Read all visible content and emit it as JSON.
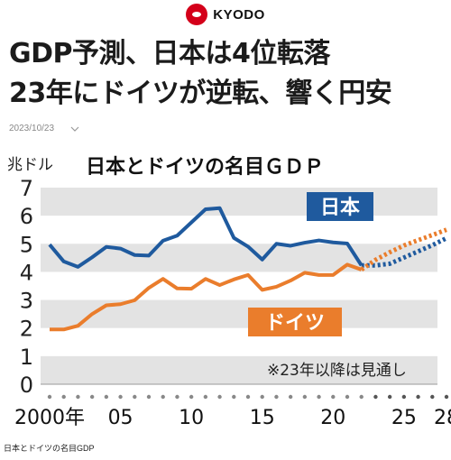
{
  "brand": {
    "name": "KYODO",
    "color": "#d4001a"
  },
  "headline": {
    "line1": "GDP予測、日本は4位転落",
    "line2": "23年にドイツが逆転、響く円安"
  },
  "date": "2023/10/23",
  "caption": "日本とドイツの名目GDP",
  "chart_data": {
    "type": "line",
    "title": "日本とドイツの名目ＧＤＰ",
    "ylabel": "兆ドル",
    "note": "※23年以降は見通し",
    "ylim": [
      0,
      7
    ],
    "yticks": [
      "0",
      "1",
      "2",
      "3",
      "4",
      "5",
      "6",
      "7"
    ],
    "xlim": [
      2000,
      2028
    ],
    "xtick_labels": [
      {
        "x": 2000,
        "label": "2000年"
      },
      {
        "x": 2005,
        "label": "05"
      },
      {
        "x": 2010,
        "label": "10"
      },
      {
        "x": 2015,
        "label": "15"
      },
      {
        "x": 2020,
        "label": "20"
      },
      {
        "x": 2025,
        "label": "25"
      },
      {
        "x": 2028,
        "label": "28"
      }
    ],
    "grid": true,
    "forecast_from": 2022,
    "series": [
      {
        "name": "日本",
        "color": "#1f5a9e",
        "x": [
          2000,
          2001,
          2002,
          2003,
          2004,
          2005,
          2006,
          2007,
          2008,
          2009,
          2010,
          2011,
          2012,
          2013,
          2014,
          2015,
          2016,
          2017,
          2018,
          2019,
          2020,
          2021,
          2022,
          2023,
          2024,
          2025,
          2026,
          2027,
          2028
        ],
        "values": [
          4.97,
          4.37,
          4.18,
          4.52,
          4.89,
          4.83,
          4.6,
          4.58,
          5.11,
          5.29,
          5.76,
          6.23,
          6.27,
          5.21,
          4.9,
          4.44,
          5.0,
          4.93,
          5.04,
          5.12,
          5.05,
          5.01,
          4.23,
          4.23,
          4.29,
          4.51,
          4.73,
          4.95,
          5.2
        ]
      },
      {
        "name": "ドイツ",
        "color": "#ea7d2c",
        "x": [
          2000,
          2001,
          2002,
          2003,
          2004,
          2005,
          2006,
          2007,
          2008,
          2009,
          2010,
          2011,
          2012,
          2013,
          2014,
          2015,
          2016,
          2017,
          2018,
          2019,
          2020,
          2021,
          2022,
          2023,
          2024,
          2025,
          2026,
          2027,
          2028
        ],
        "values": [
          1.95,
          1.95,
          2.08,
          2.5,
          2.81,
          2.85,
          2.99,
          3.43,
          3.75,
          3.41,
          3.4,
          3.75,
          3.53,
          3.73,
          3.89,
          3.36,
          3.47,
          3.69,
          3.97,
          3.89,
          3.89,
          4.26,
          4.08,
          4.43,
          4.7,
          4.94,
          5.13,
          5.31,
          5.5
        ]
      }
    ]
  }
}
